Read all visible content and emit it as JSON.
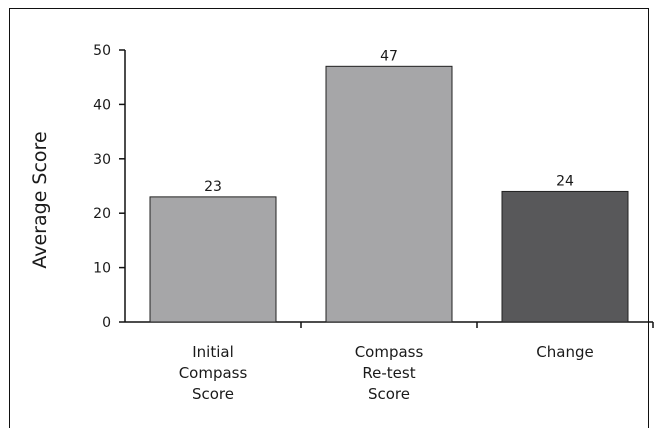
{
  "chart_data": {
    "type": "bar",
    "title": "",
    "xlabel": "",
    "ylabel": "Average Score",
    "ylim": [
      0,
      50
    ],
    "yticks": [
      0,
      10,
      20,
      30,
      40,
      50
    ],
    "grid": false,
    "categories": [
      [
        "Initial",
        "Compass",
        "Score"
      ],
      [
        "Compass",
        "Re-test",
        "Score"
      ],
      [
        "Change"
      ]
    ],
    "values": [
      23,
      47,
      24
    ],
    "data_labels": [
      "23",
      "47",
      "24"
    ],
    "colors": [
      "#a6a6a8",
      "#a6a6a8",
      "#58585a"
    ]
  }
}
